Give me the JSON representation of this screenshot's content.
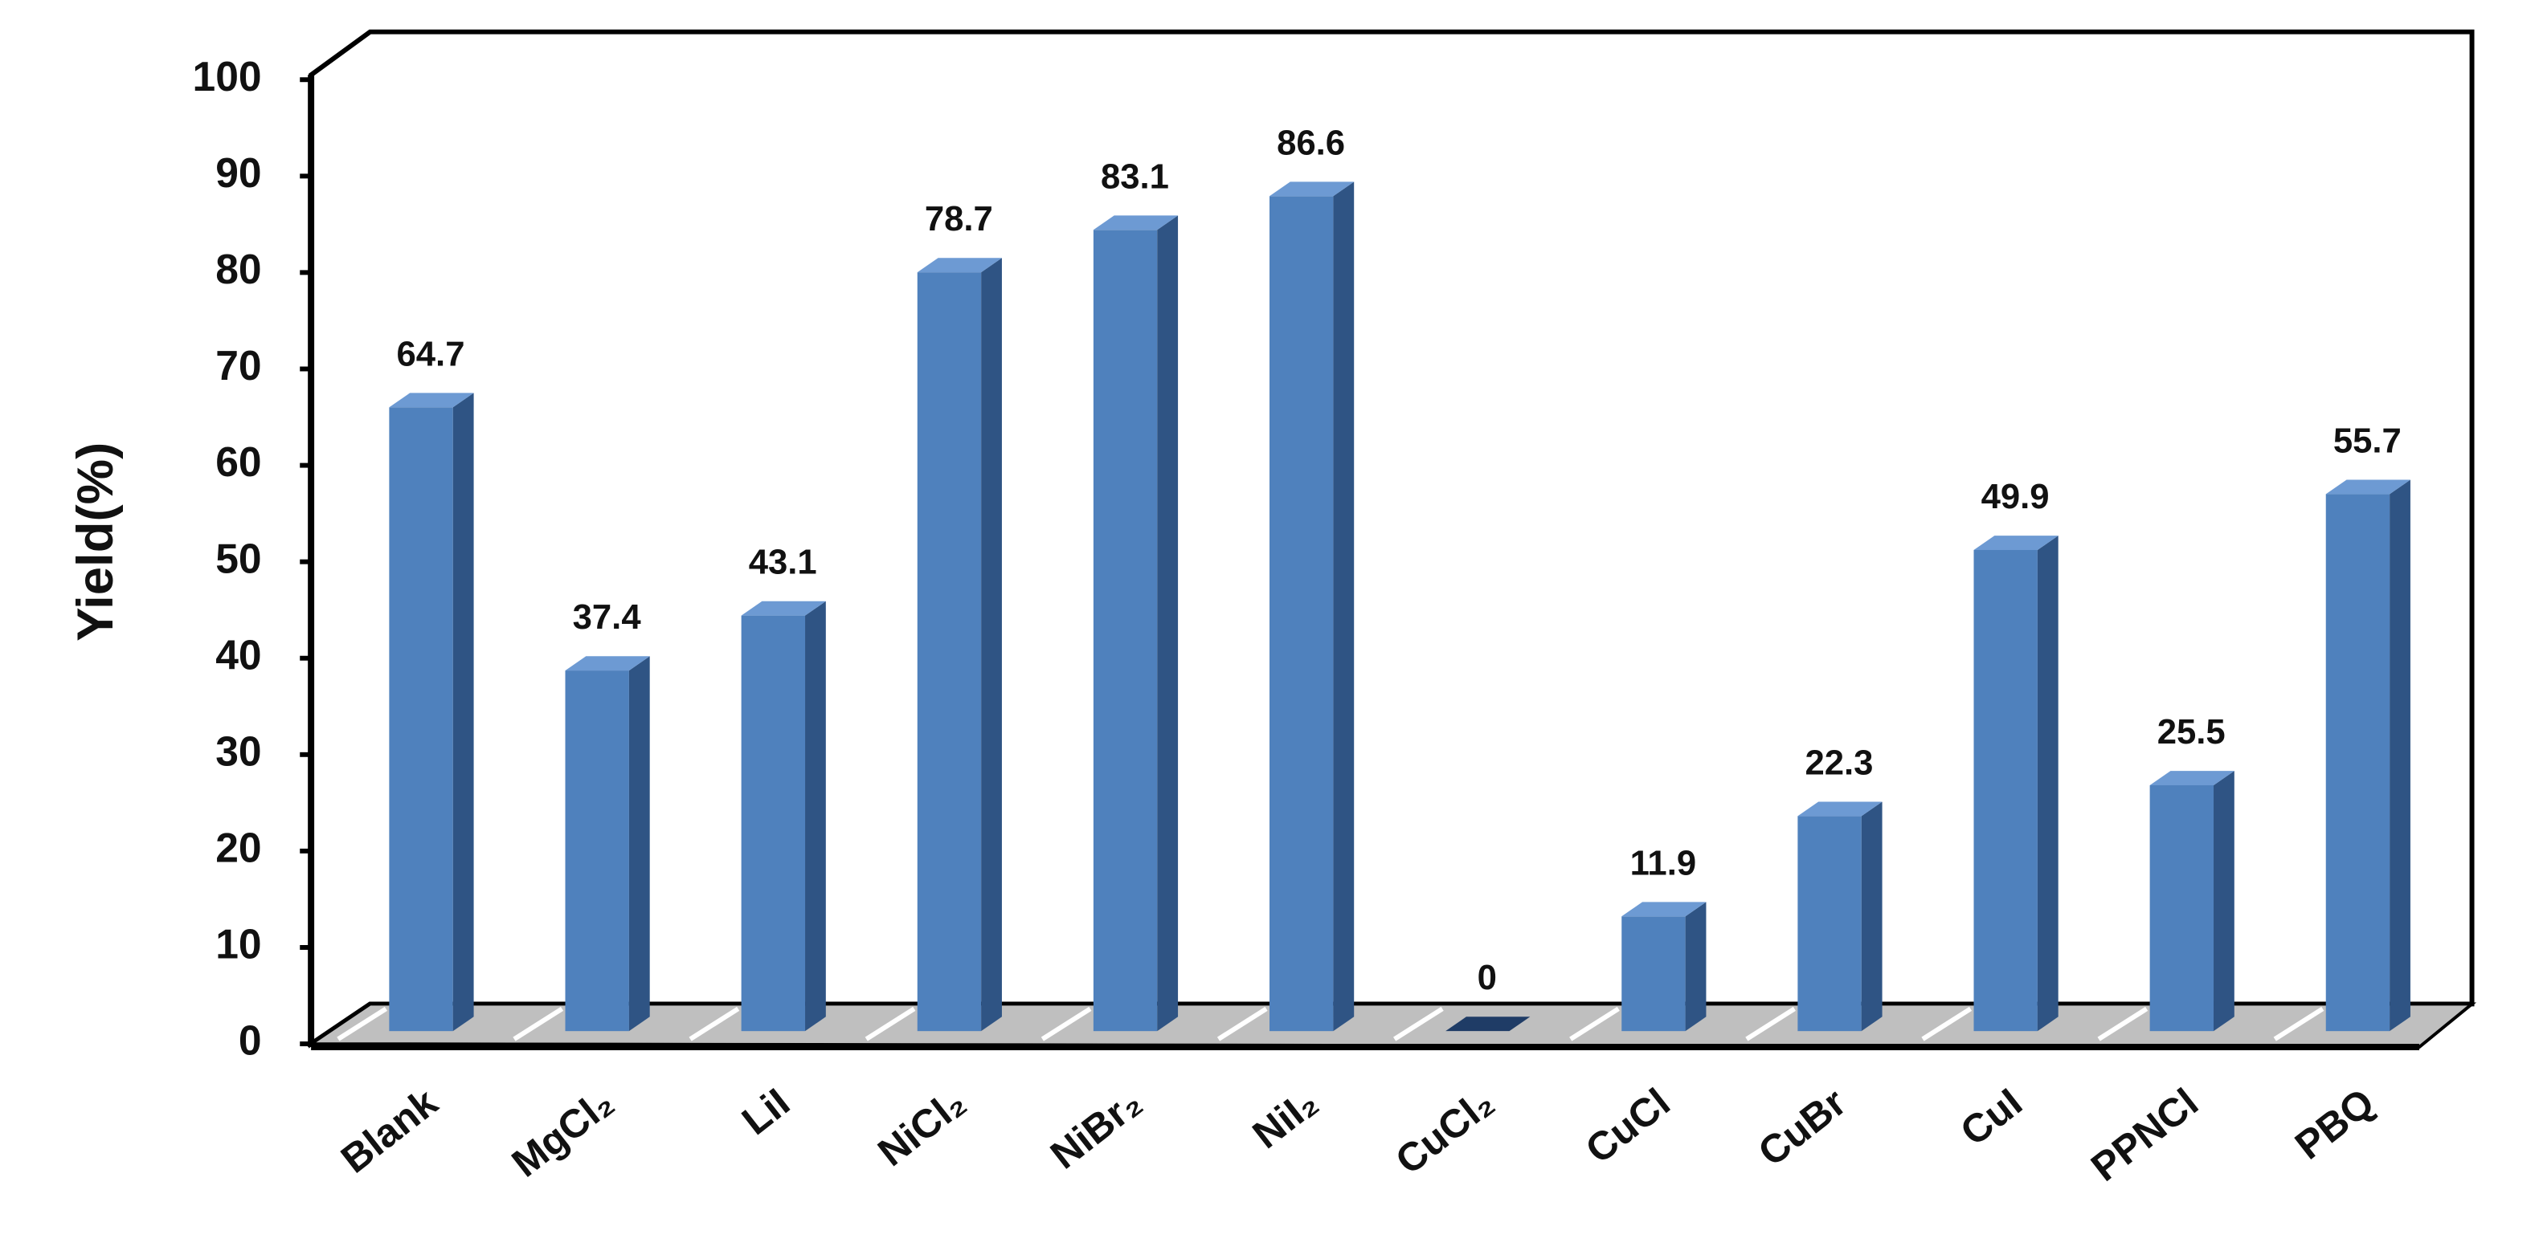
{
  "chart_data": {
    "type": "bar3d",
    "y_label": "Yield(%)",
    "categories": [
      "Blank",
      "MgCl₂",
      "LiI",
      "NiCl₂",
      "NiBr₂",
      "NiI₂",
      "CuCl₂",
      "CuCl",
      "CuBr",
      "CuI",
      "PPNCl",
      "PBQ"
    ],
    "values": [
      64.7,
      37.4,
      43.1,
      78.7,
      83.1,
      86.6,
      0,
      11.9,
      22.3,
      49.9,
      25.5,
      55.7
    ],
    "color": "#4f81bd",
    "ylim": [
      0,
      100
    ],
    "yticks": [
      0,
      10,
      20,
      30,
      40,
      50,
      60,
      70,
      80,
      90,
      100
    ]
  }
}
